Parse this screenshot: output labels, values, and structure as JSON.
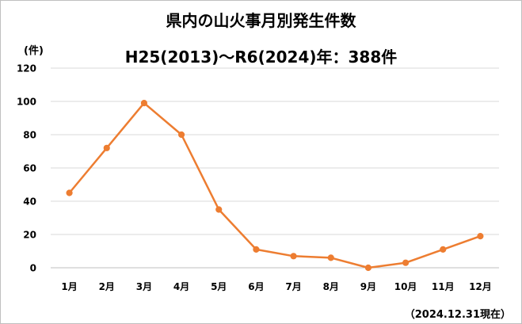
{
  "chart_data": {
    "type": "line",
    "title": "県内の山火事月別発生件数",
    "subtitle": "H25(2013)〜R6(2024)年：388件",
    "y_unit": "(件)",
    "note": "（2024.12.31現在）",
    "categories": [
      "1月",
      "2月",
      "3月",
      "4月",
      "5月",
      "6月",
      "7月",
      "8月",
      "9月",
      "10月",
      "11月",
      "12月"
    ],
    "values": [
      45,
      72,
      99,
      80,
      35,
      11,
      7,
      6,
      0,
      3,
      11,
      19
    ],
    "ylim": [
      0,
      120
    ],
    "yticks": [
      0,
      20,
      40,
      60,
      80,
      100,
      120
    ],
    "grid": true,
    "color": "#ed7d31"
  }
}
